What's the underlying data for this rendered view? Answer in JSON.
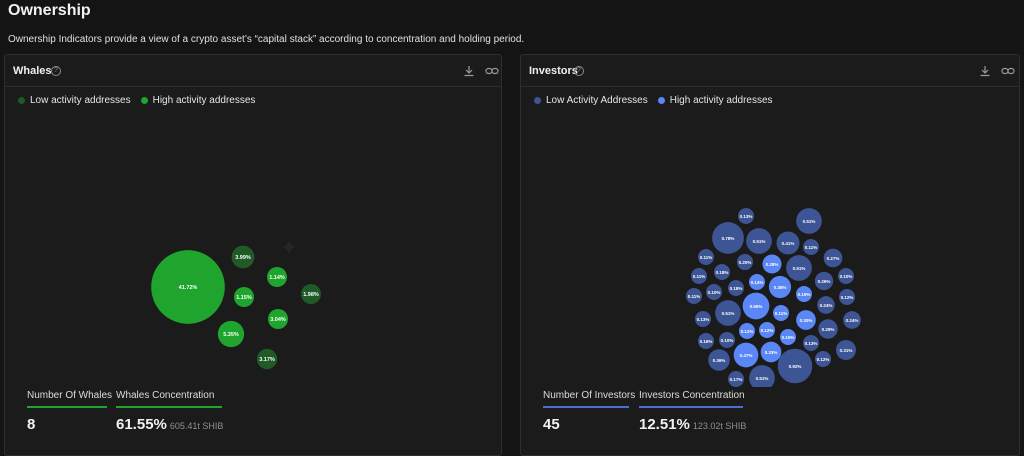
{
  "page": {
    "title": "Ownership",
    "subtitle": "Ownership Indicators provide a view of a crypto asset’s “capital stack” according to concentration and holding period."
  },
  "whales": {
    "title": "Whales",
    "legend": [
      {
        "label": "Low activity addresses",
        "color": "#1f5a27"
      },
      {
        "label": "High activity addresses",
        "color": "#1fa52d"
      }
    ],
    "stats": {
      "count_label": "Number Of Whales",
      "count_value": "8",
      "conc_label": "Whales Concentration",
      "conc_value": "61.55%",
      "conc_sub": "605.41t SHIB"
    },
    "accent": "#1fa52d"
  },
  "investors": {
    "title": "Investors",
    "legend": [
      {
        "label": "Low Activity Addresses",
        "color": "#3d5594"
      },
      {
        "label": "High activity addresses",
        "color": "#5b86f5"
      }
    ],
    "stats": {
      "count_label": "Number Of Investors",
      "count_value": "45",
      "conc_label": "Investors Concentration",
      "conc_value": "12.51%",
      "conc_sub": "123.02t SHIB"
    },
    "accent": "#4a6fd6"
  },
  "chart_data": [
    {
      "type": "bubble",
      "title": "Whales",
      "series": [
        {
          "name": "Low activity addresses",
          "values": [
            3.99,
            1.98,
            3.17
          ]
        },
        {
          "name": "High activity addresses",
          "values": [
            41.72,
            1.14,
            1.15,
            3.04,
            5.35
          ]
        }
      ],
      "labels": {
        "Low activity addresses": [
          "3.99%",
          "1.98%",
          "3.17%"
        ],
        "High activity addresses": [
          "41.72%",
          "1.14%",
          "1.15%",
          "3.04%",
          "5.35%"
        ]
      }
    },
    {
      "type": "bubble",
      "title": "Investors",
      "series": [
        {
          "name": "Low Activity Addresses",
          "values": [
            0.13,
            0.78,
            0.51,
            0.41,
            0.51,
            0.11,
            0.11,
            0.18,
            0.2,
            0.51,
            0.27,
            0.11,
            0.1,
            0.18,
            0.26,
            0.1,
            0.11,
            0.51,
            0.24,
            0.12,
            0.13,
            0.24,
            0.16,
            0.1,
            0.29,
            0.13,
            0.31,
            0.36,
            0.17,
            0.51,
            0.92,
            0.12,
            0.51
          ]
        },
        {
          "name": "High activity addresses",
          "values": [
            0.28,
            0.14,
            0.38,
            0.19,
            0.55,
            0.11,
            0.3,
            0.12,
            0.12,
            0.15,
            0.47,
            0.33
          ]
        }
      ],
      "labels": {
        "Low Activity Addresses": [
          "0.13%",
          "0.78%",
          "0.51%",
          "0.41%",
          "0.51%",
          "0.11%",
          "0.11%",
          "0.18%",
          "0.20%",
          "0.51%",
          "0.27%",
          "0.11%",
          "0.10%",
          "0.18%",
          "0.26%",
          "0.10%",
          "0.11%",
          "0.51%",
          "0.24%",
          "0.12%",
          "0.13%",
          "0.24%",
          "0.16%",
          "0.10%",
          "0.29%",
          "0.13%",
          "0.31%",
          "0.36%",
          "0.17%",
          "0.51%",
          "0.92%",
          "0.12%",
          "0.51%"
        ],
        "High activity addresses": [
          "0.28%",
          "0.14%",
          "0.38%",
          "0.19%",
          "0.55%",
          "0.11%",
          "0.30%",
          "0.12%",
          "0.12%",
          "0.15%",
          "0.47%",
          "0.33%"
        ]
      }
    }
  ]
}
